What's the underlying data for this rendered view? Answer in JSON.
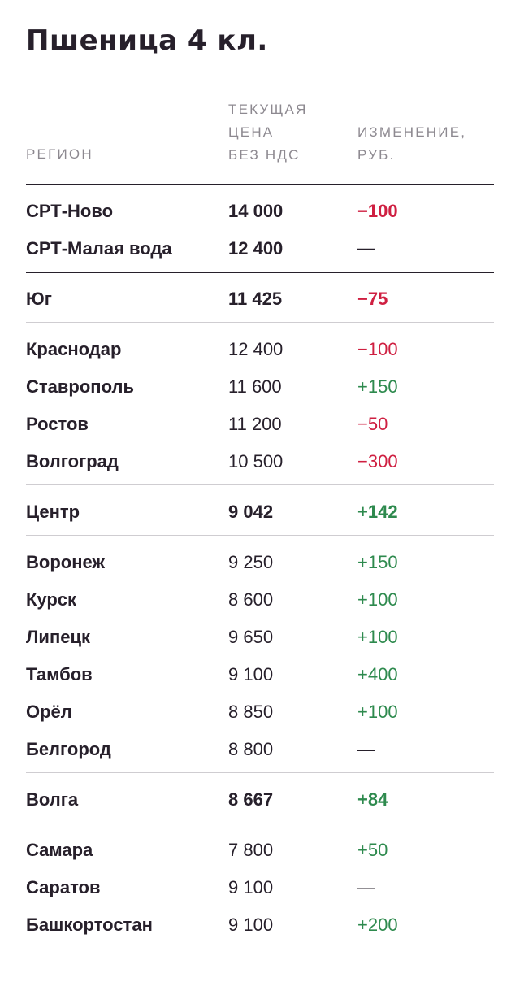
{
  "title": "Пшеница 4 кл.",
  "headers": {
    "region": "РЕГИОН",
    "price_line1": "ТЕКУЩАЯ",
    "price_line2": "ЦЕНА",
    "price_line3": "БЕЗ НДС",
    "change_line1": "ИЗМЕНЕНИЕ,",
    "change_line2": "РУБ."
  },
  "colors": {
    "negative": "#cf1f41",
    "positive": "#2e8a4e",
    "text": "#27202b"
  },
  "rows": [
    {
      "region": "СРТ-Ново",
      "price": "14 000",
      "change": "−100",
      "kind": "summary",
      "trend": "negative"
    },
    {
      "region": "СРТ-Малая вода",
      "price": "12 400",
      "change": "—",
      "kind": "summary",
      "trend": "neutral"
    },
    {
      "region": "Юг",
      "price": "11 425",
      "change": "−75",
      "kind": "summary",
      "trend": "negative"
    },
    {
      "region": "Краснодар",
      "price": "12 400",
      "change": "−100",
      "kind": "detail",
      "trend": "negative"
    },
    {
      "region": "Ставрополь",
      "price": "11 600",
      "change": "+150",
      "kind": "detail",
      "trend": "positive"
    },
    {
      "region": "Ростов",
      "price": "11 200",
      "change": "−50",
      "kind": "detail",
      "trend": "negative"
    },
    {
      "region": "Волгоград",
      "price": "10 500",
      "change": "−300",
      "kind": "detail",
      "trend": "negative"
    },
    {
      "region": "Центр",
      "price": "9 042",
      "change": "+142",
      "kind": "summary",
      "trend": "positive"
    },
    {
      "region": "Воронеж",
      "price": "9 250",
      "change": "+150",
      "kind": "detail",
      "trend": "positive"
    },
    {
      "region": "Курск",
      "price": "8 600",
      "change": "+100",
      "kind": "detail",
      "trend": "positive"
    },
    {
      "region": "Липецк",
      "price": "9 650",
      "change": "+100",
      "kind": "detail",
      "trend": "positive"
    },
    {
      "region": "Тамбов",
      "price": "9 100",
      "change": "+400",
      "kind": "detail",
      "trend": "positive"
    },
    {
      "region": "Орёл",
      "price": "8 850",
      "change": "+100",
      "kind": "detail",
      "trend": "positive"
    },
    {
      "region": "Белгород",
      "price": "8 800",
      "change": "—",
      "kind": "detail",
      "trend": "neutral"
    },
    {
      "region": "Волга",
      "price": "8 667",
      "change": "+84",
      "kind": "summary",
      "trend": "positive"
    },
    {
      "region": "Самара",
      "price": "7 800",
      "change": "+50",
      "kind": "detail",
      "trend": "positive"
    },
    {
      "region": "Саратов",
      "price": "9 100",
      "change": "—",
      "kind": "detail",
      "trend": "neutral"
    },
    {
      "region": "Башкортостан",
      "price": "9 100",
      "change": "+200",
      "kind": "detail",
      "trend": "positive"
    }
  ]
}
